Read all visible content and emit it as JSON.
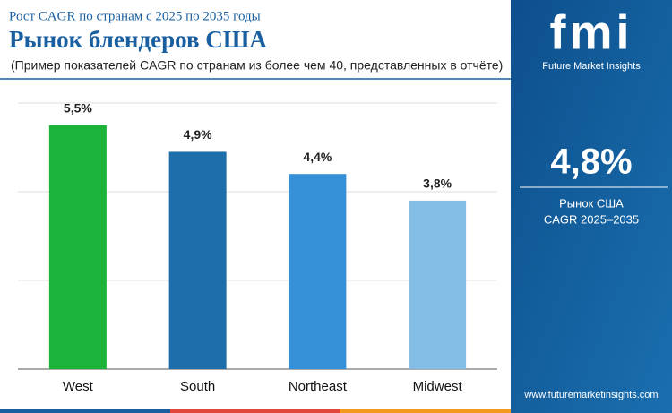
{
  "chart_data": {
    "type": "bar",
    "subtitle": "Рост CAGR по странам с 2025 по 2035 годы",
    "title": "Рынок блендеров США",
    "note": "(Пример показателей CAGR по странам из более чем 40, представленных в отчёте)",
    "categories": [
      "West",
      "South",
      "Northeast",
      "Midwest"
    ],
    "values": [
      5.5,
      4.9,
      4.4,
      3.8
    ],
    "value_labels": [
      "5,5%",
      "4,9%",
      "4,4%",
      "3,8%"
    ],
    "colors": [
      "#1cb33a",
      "#1d6eaa",
      "#3690d8",
      "#84bde6"
    ],
    "ylim": [
      0,
      6
    ],
    "yticks": [
      0,
      2,
      4,
      6
    ],
    "grid": true
  },
  "panel": {
    "logo": "fmi",
    "brand": "Future Market Insights",
    "value": "4,8%",
    "label1": "Рынок США",
    "label2": "CAGR 2025–2035",
    "url": "www.futuremarketinsights.com"
  }
}
